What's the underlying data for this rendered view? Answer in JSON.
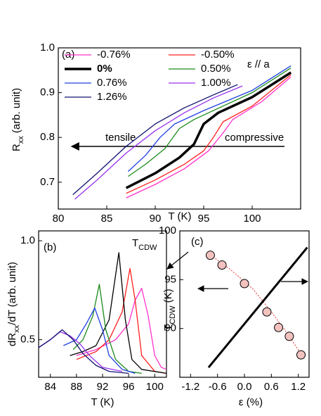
{
  "chart_data": [
    {
      "type": "line",
      "label": "(a)",
      "xlabel": "T (K)",
      "ylabel": [
        "R",
        "xx",
        " (arb. unit)"
      ],
      "xlim": [
        80,
        105
      ],
      "xticks": [
        80,
        85,
        90,
        95,
        100
      ],
      "ylim": [
        0.64,
        1.0
      ],
      "yticks": [
        0.7,
        0.8,
        0.9,
        {
          "value": 1.0,
          "label": "1.0"
        }
      ],
      "legend": true,
      "annotations": [
        "ε // a",
        "tensile",
        "compressive"
      ],
      "series": [
        {
          "name": "-0.76%",
          "color": "#ff33cc",
          "x": [
            87,
            90,
            93,
            95.5,
            97,
            98,
            101,
            104
          ],
          "values": [
            0.665,
            0.695,
            0.73,
            0.77,
            0.81,
            0.84,
            0.88,
            0.935
          ]
        },
        {
          "name": "-0.50%",
          "color": "#ff2020",
          "x": [
            87,
            90,
            93,
            95,
            96,
            97,
            100,
            104
          ],
          "values": [
            0.675,
            0.705,
            0.74,
            0.77,
            0.8,
            0.835,
            0.87,
            0.94
          ]
        },
        {
          "name": "0%",
          "color": "#000000",
          "x": [
            87,
            90,
            92.5,
            94,
            95,
            96.5,
            100,
            104
          ],
          "values": [
            0.687,
            0.72,
            0.755,
            0.785,
            0.83,
            0.855,
            0.89,
            0.945
          ]
        },
        {
          "name": "0.50%",
          "color": "#1a8a1a",
          "x": [
            87.2,
            89,
            91,
            92.5,
            94,
            97,
            100,
            104
          ],
          "values": [
            0.713,
            0.74,
            0.775,
            0.82,
            0.84,
            0.87,
            0.9,
            0.955
          ]
        },
        {
          "name": "0.76%",
          "color": "#2040e0",
          "x": [
            87.2,
            89,
            90.5,
            92,
            95,
            100,
            104
          ],
          "values": [
            0.724,
            0.76,
            0.8,
            0.83,
            0.86,
            0.905,
            0.96
          ]
        },
        {
          "name": "1.00%",
          "color": "#9933ee",
          "x": [
            81.7,
            84,
            87,
            90,
            93,
            96,
            99
          ],
          "values": [
            0.662,
            0.705,
            0.765,
            0.815,
            0.855,
            0.888,
            0.915
          ]
        },
        {
          "name": "1.26%",
          "color": "#101070",
          "x": [
            81.5,
            84,
            87,
            90,
            93,
            96,
            98.5
          ],
          "values": [
            0.672,
            0.72,
            0.78,
            0.83,
            0.866,
            0.895,
            0.918
          ]
        }
      ]
    },
    {
      "type": "line",
      "label": "(b)",
      "xlabel": "T (K)",
      "ylabel": [
        "dR",
        "xx",
        "/dT (arb. unit)"
      ],
      "xlim": [
        82.2,
        101.8
      ],
      "xticks": [
        84,
        88,
        92,
        96,
        100
      ],
      "ylim": [
        0.31,
        1.05
      ],
      "yticks": [
        0.5,
        {
          "value": 1.0,
          "label": "1.0"
        }
      ],
      "annotations": [
        [
          "T",
          "CDW"
        ]
      ],
      "series": [
        {
          "color": "#ff33cc",
          "x": [
            88,
            91,
            94,
            96,
            97,
            98,
            99,
            100,
            101,
            101.8
          ],
          "values": [
            0.42,
            0.45,
            0.5,
            0.58,
            0.7,
            0.76,
            0.62,
            0.42,
            0.36,
            0.35
          ]
        },
        {
          "color": "#ff2020",
          "x": [
            88,
            91,
            93,
            95,
            96.2,
            97,
            98,
            100,
            101.8
          ],
          "values": [
            0.4,
            0.44,
            0.5,
            0.64,
            0.86,
            0.7,
            0.42,
            0.34,
            0.33
          ]
        },
        {
          "color": "#000000",
          "x": [
            87,
            89,
            91,
            93,
            94.5,
            95.5,
            96.5,
            98,
            101.8
          ],
          "values": [
            0.42,
            0.44,
            0.47,
            0.6,
            0.94,
            0.6,
            0.4,
            0.35,
            0.33
          ]
        },
        {
          "color": "#1a8a1a",
          "x": [
            87.5,
            89,
            90.5,
            91.5,
            92.5,
            94,
            96,
            98
          ],
          "values": [
            0.45,
            0.5,
            0.62,
            0.78,
            0.55,
            0.4,
            0.34,
            0.33
          ]
        },
        {
          "color": "#2040e0",
          "x": [
            86,
            88,
            89.5,
            90.8,
            92,
            93,
            95,
            97
          ],
          "values": [
            0.47,
            0.5,
            0.58,
            0.66,
            0.55,
            0.42,
            0.35,
            0.33
          ]
        },
        {
          "color": "#9933ee",
          "x": [
            82.2,
            84,
            85.5,
            87,
            88.5,
            90,
            92,
            95
          ],
          "values": [
            0.46,
            0.5,
            0.54,
            0.52,
            0.48,
            0.42,
            0.36,
            0.34
          ]
        },
        {
          "color": "#101070",
          "x": [
            82.2,
            84,
            85.8,
            87.5,
            89,
            91,
            93,
            96
          ],
          "values": [
            0.46,
            0.5,
            0.55,
            0.5,
            0.43,
            0.37,
            0.34,
            0.33
          ]
        }
      ]
    },
    {
      "type": "scatter",
      "label": "(c)",
      "xlabel": "ε (%)",
      "ylabel": [
        "T",
        "CDW",
        " (K)"
      ],
      "xlim": [
        -1.44,
        1.44
      ],
      "xticks": [
        -1.2,
        -0.6,
        {
          "value": 0,
          "label": "0.0"
        },
        0.6,
        1.2
      ],
      "ylim": [
        85,
        100
      ],
      "yticks": [
        90,
        95,
        100
      ],
      "series": [
        {
          "style": "dotted",
          "color": "#e03030",
          "x": [
            -0.8,
            -0.3,
            0.2,
            0.6,
            1.0,
            1.3
          ],
          "values": [
            97.7,
            96,
            94,
            91.7,
            89.2,
            87.1
          ]
        },
        {
          "style": "line",
          "color": "#000000",
          "x": [
            -0.8,
            1.4
          ],
          "values": [
            86,
            98.3
          ]
        },
        {
          "style": "circle",
          "color": "#f2c2bf",
          "x": [
            -0.76,
            -0.5,
            0,
            0.5,
            0.76,
            1.0,
            1.26
          ],
          "values": [
            97.5,
            96.5,
            94.6,
            91.7,
            90.1,
            89.2,
            87.3
          ]
        }
      ]
    }
  ]
}
